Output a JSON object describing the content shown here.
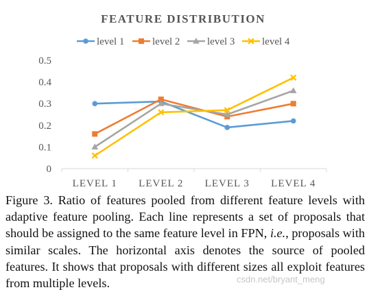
{
  "chart_data": {
    "type": "line",
    "title": "FEATURE DISTRIBUTION",
    "categories": [
      "LEVEL 1",
      "LEVEL 2",
      "LEVEL 3",
      "LEVEL 4"
    ],
    "yticks": [
      "0",
      "0.1",
      "0.2",
      "0.3",
      "0.4",
      "0.5"
    ],
    "ylim": [
      0,
      0.5
    ],
    "grid": false,
    "legend_position": "top",
    "series": [
      {
        "name": "level 1",
        "color": "#5b9bd5",
        "marker": "circle",
        "values": [
          0.3,
          0.31,
          0.19,
          0.22
        ]
      },
      {
        "name": "level 2",
        "color": "#ed7d31",
        "marker": "square",
        "values": [
          0.16,
          0.32,
          0.24,
          0.3
        ]
      },
      {
        "name": "level 3",
        "color": "#a5a5a5",
        "marker": "triangle",
        "values": [
          0.1,
          0.3,
          0.25,
          0.36
        ]
      },
      {
        "name": "level 4",
        "color": "#ffc000",
        "marker": "cross",
        "values": [
          0.06,
          0.26,
          0.27,
          0.42
        ]
      }
    ]
  },
  "caption": {
    "prefix": "Figure 3. Ratio of features pooled from different feature levels with adaptive feature pooling.  Each line represents a set of proposals that should be assigned to the same feature level in FPN, ",
    "emphasis": "i.e.",
    "suffix": ", proposals with similar scales. The horizontal axis denotes the source of pooled features.  It shows that proposals with different sizes all exploit features from multiple levels."
  },
  "watermark": "csdn.net/bryant_meng"
}
